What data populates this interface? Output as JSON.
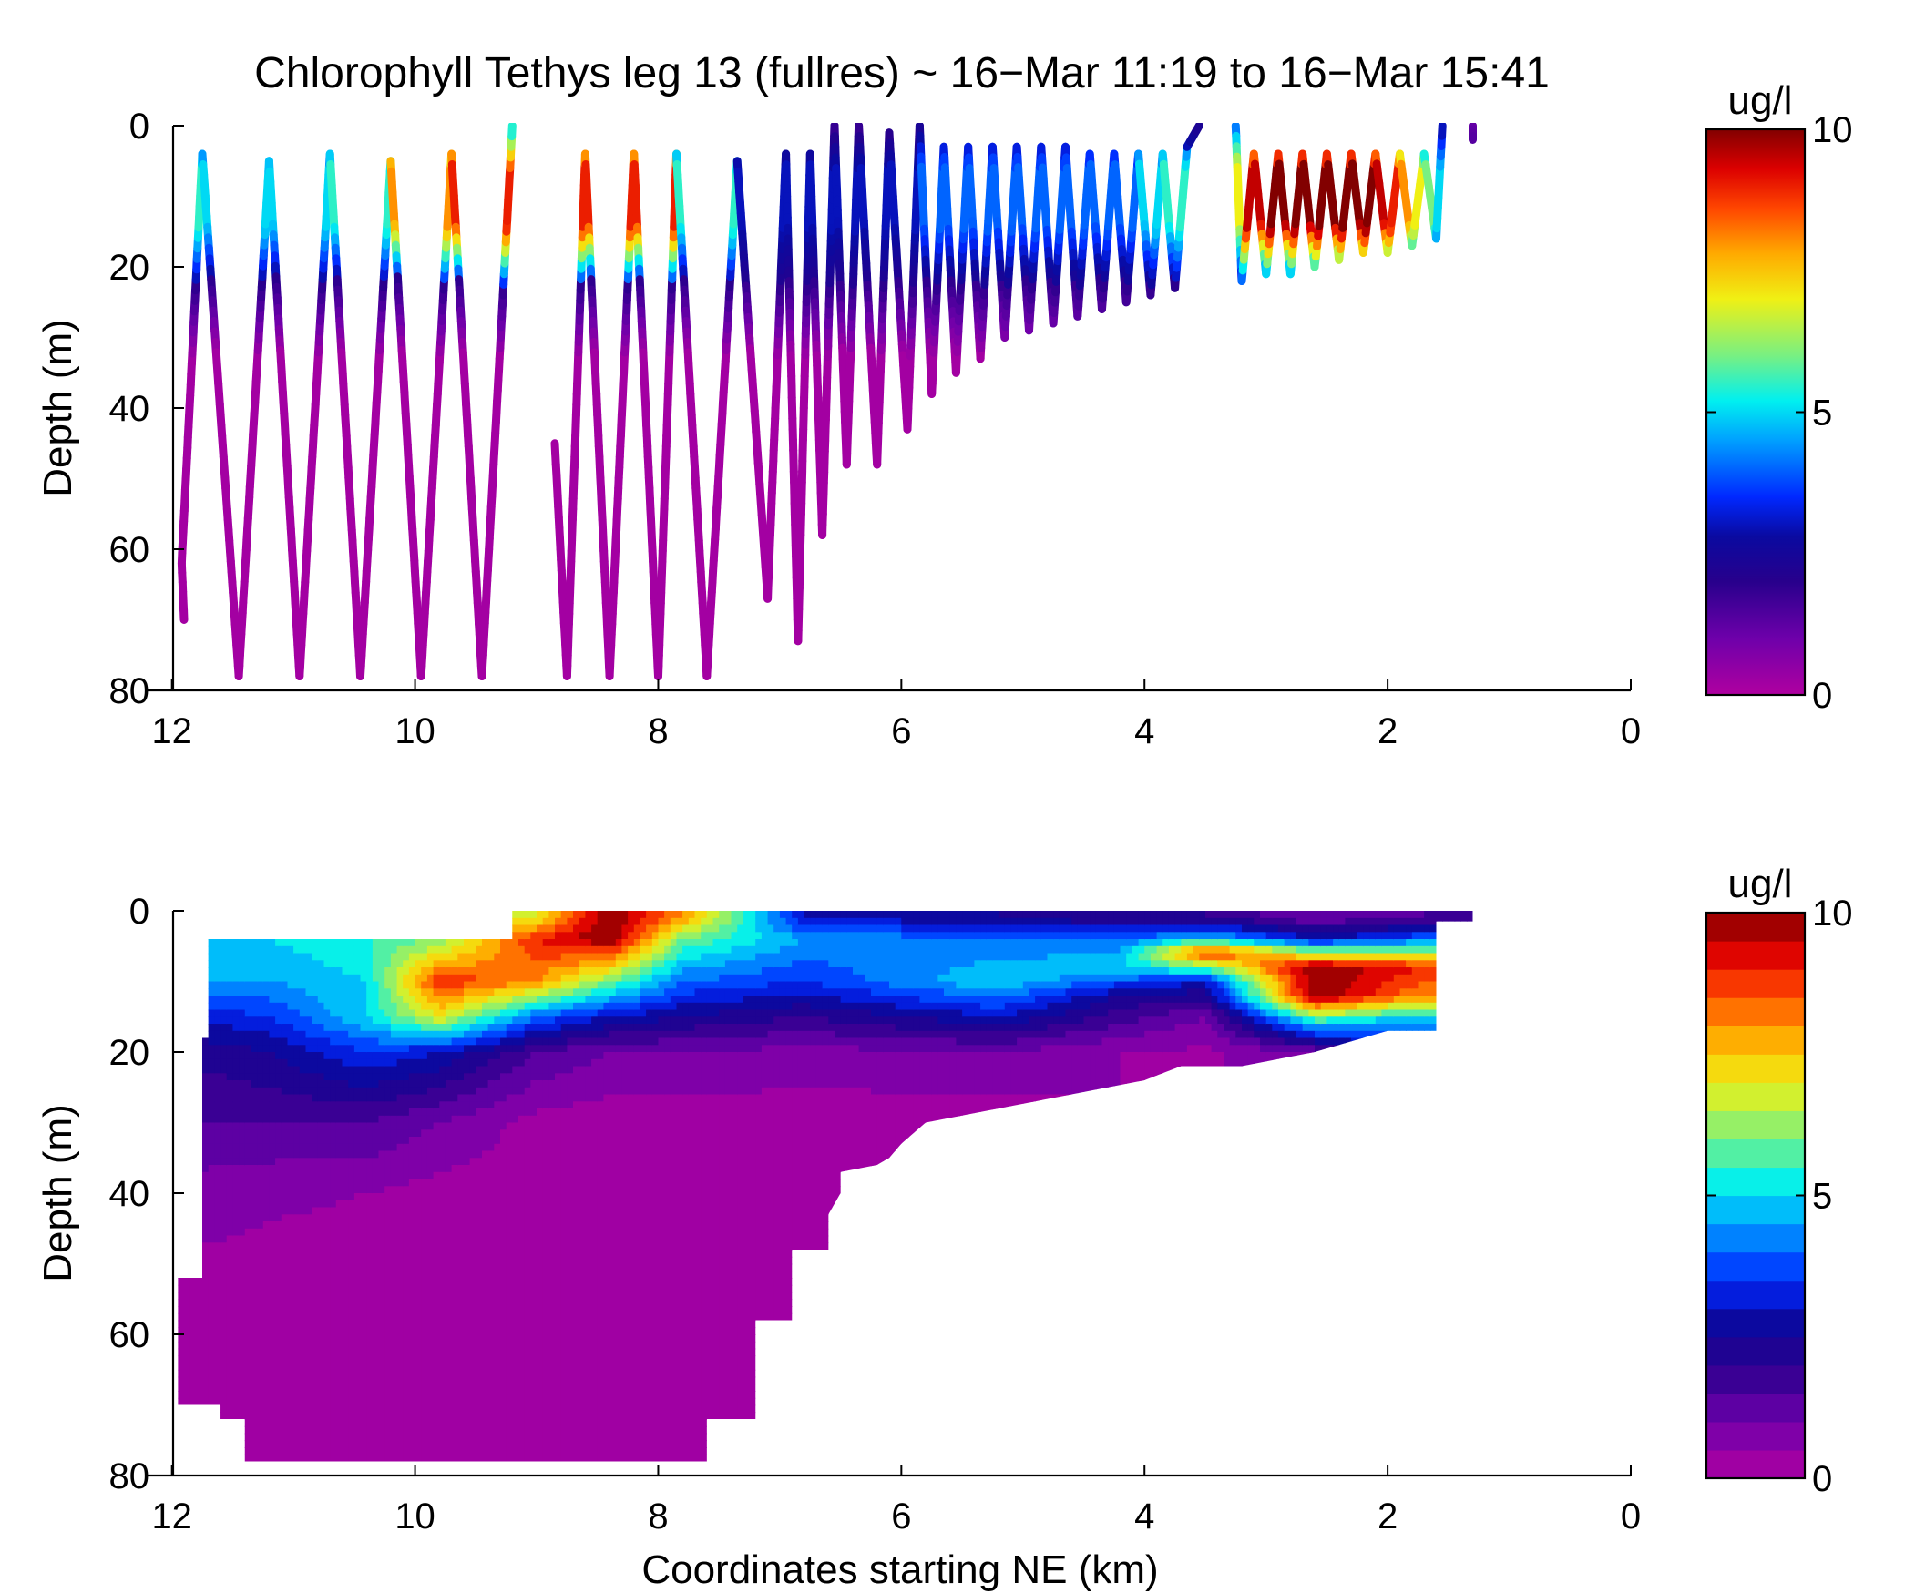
{
  "title": "Chlorophyll Tethys leg 13 (fullres) ~ 16−Mar 11:19 to 16−Mar 15:41",
  "chart_data": [
    {
      "type": "scatter",
      "panel": "top",
      "xlabel": "",
      "ylabel": "Depth (m)",
      "xlim": [
        12.2,
        0
      ],
      "ylim": [
        0,
        80
      ],
      "y_reversed": true,
      "xticks": [
        "12",
        "10",
        "8",
        "6",
        "4",
        "2",
        "0"
      ],
      "yticks": [
        "0",
        "20",
        "40",
        "60",
        "80"
      ],
      "colorbar": {
        "label": "ug/l",
        "range": [
          0,
          10
        ],
        "ticks": [
          "0",
          "5",
          "10"
        ],
        "colormap": "jet-like (magenta→blue→cyan→yellow→red→dark red)",
        "continuous": true
      },
      "series": [
        {
          "path_km_depth": [
            [
              11.9,
              70
            ],
            [
              11.92,
              62
            ],
            [
              11.75,
              4
            ],
            [
              11.45,
              78
            ],
            [
              11.2,
              5
            ],
            [
              10.95,
              78
            ],
            [
              10.7,
              4
            ],
            [
              10.45,
              78
            ],
            [
              10.2,
              5
            ],
            [
              9.95,
              78
            ],
            [
              9.7,
              4
            ],
            [
              9.45,
              78
            ],
            [
              9.2,
              0
            ]
          ],
          "upper_chl": [
            2,
            5.5,
            2,
            5,
            2,
            5,
            2,
            5.5,
            2,
            8,
            2,
            9,
            6
          ],
          "description": "sampling track segment 1"
        },
        {
          "path_km_depth": [
            [
              8.85,
              45
            ],
            [
              8.75,
              78
            ],
            [
              8.6,
              4
            ],
            [
              8.4,
              78
            ],
            [
              8.2,
              4
            ],
            [
              8.0,
              78
            ],
            [
              7.85,
              4
            ],
            [
              7.6,
              78
            ],
            [
              7.35,
              5
            ],
            [
              7.1,
              67
            ],
            [
              6.95,
              4
            ],
            [
              6.85,
              73
            ],
            [
              6.75,
              4
            ],
            [
              6.65,
              58
            ],
            [
              6.55,
              0
            ],
            [
              6.45,
              48
            ],
            [
              6.35,
              0
            ],
            [
              6.2,
              48
            ],
            [
              6.1,
              1
            ],
            [
              5.95,
              43
            ],
            [
              5.85,
              0
            ],
            [
              5.75,
              38
            ],
            [
              5.65,
              3
            ],
            [
              5.55,
              35
            ],
            [
              5.45,
              3
            ],
            [
              5.35,
              33
            ],
            [
              5.25,
              3
            ],
            [
              5.15,
              30
            ],
            [
              5.05,
              3
            ],
            [
              4.95,
              29
            ],
            [
              4.85,
              3
            ],
            [
              4.75,
              28
            ],
            [
              4.65,
              3
            ],
            [
              4.55,
              27
            ],
            [
              4.45,
              4
            ],
            [
              4.35,
              26
            ],
            [
              4.25,
              4
            ],
            [
              4.15,
              25
            ],
            [
              4.05,
              4
            ],
            [
              3.95,
              24
            ],
            [
              3.85,
              4
            ],
            [
              3.75,
              23
            ],
            [
              3.65,
              3
            ],
            [
              3.55,
              0
            ]
          ],
          "upper_chl": [
            2,
            9,
            2,
            9,
            2,
            9,
            2,
            5.5,
            2,
            3,
            2,
            3,
            2,
            3,
            2,
            3,
            2,
            3,
            2,
            3,
            2,
            4,
            2,
            4,
            2,
            4,
            2,
            4,
            2,
            4,
            2,
            4,
            2,
            4,
            2,
            4,
            2,
            4,
            2,
            5,
            2,
            5.5,
            2,
            4
          ],
          "description": "sampling track segment 2"
        },
        {
          "path_km_depth": [
            [
              3.25,
              0
            ],
            [
              3.2,
              22
            ],
            [
              3.1,
              4
            ],
            [
              3.0,
              21
            ],
            [
              2.9,
              4
            ],
            [
              2.8,
              21
            ],
            [
              2.7,
              4
            ],
            [
              2.6,
              20
            ],
            [
              2.5,
              4
            ],
            [
              2.4,
              19
            ],
            [
              2.3,
              4
            ],
            [
              2.2,
              18
            ],
            [
              2.1,
              4
            ],
            [
              2.0,
              18
            ],
            [
              1.9,
              4
            ],
            [
              1.8,
              17
            ],
            [
              1.7,
              4
            ],
            [
              1.6,
              16
            ],
            [
              1.55,
              0
            ]
          ],
          "upper_chl": [
            3,
            7,
            9.5,
            9.5,
            10,
            10,
            10,
            10,
            10,
            10,
            10,
            10,
            9.5,
            9,
            8,
            7,
            6,
            5,
            3
          ],
          "description": "sampling track segment 3"
        },
        {
          "path_km_depth": [
            [
              1.3,
              0
            ],
            [
              1.3,
              2
            ]
          ],
          "upper_chl": [
            2,
            2
          ],
          "description": "sampling track segment 4"
        }
      ]
    },
    {
      "type": "heatmap",
      "subtype": "filled contour",
      "panel": "bottom",
      "xlabel": "Coordinates starting NE (km)",
      "ylabel": "Depth (m)",
      "xlim": [
        12.2,
        0
      ],
      "ylim": [
        0,
        80
      ],
      "y_reversed": true,
      "xticks": [
        "12",
        "10",
        "8",
        "6",
        "4",
        "2",
        "0"
      ],
      "yticks": [
        "0",
        "20",
        "40",
        "60",
        "80"
      ],
      "colorbar": {
        "label": "ug/l",
        "range": [
          0,
          10
        ],
        "ticks": [
          "0",
          "5",
          "10"
        ],
        "levels": 20
      },
      "data_mask_outline_km_depth": [
        [
          9.2,
          0
        ],
        [
          1.3,
          0
        ],
        [
          1.3,
          1.5
        ],
        [
          1.6,
          1.5
        ],
        [
          1.6,
          17
        ],
        [
          2.0,
          17
        ],
        [
          2.2,
          18
        ],
        [
          2.6,
          20
        ],
        [
          3.2,
          22
        ],
        [
          3.7,
          22
        ],
        [
          4.0,
          24
        ],
        [
          4.6,
          26
        ],
        [
          5.2,
          28
        ],
        [
          5.8,
          30
        ],
        [
          6.0,
          33
        ],
        [
          6.1,
          35
        ],
        [
          6.2,
          36
        ],
        [
          6.5,
          37
        ],
        [
          6.5,
          40
        ],
        [
          6.6,
          43
        ],
        [
          6.6,
          48
        ],
        [
          6.9,
          48
        ],
        [
          6.9,
          58
        ],
        [
          7.2,
          58
        ],
        [
          7.2,
          72
        ],
        [
          7.6,
          72
        ],
        [
          7.6,
          78
        ],
        [
          11.4,
          78
        ],
        [
          11.4,
          72
        ],
        [
          11.6,
          72
        ],
        [
          11.6,
          70
        ],
        [
          11.95,
          70
        ],
        [
          11.95,
          52
        ],
        [
          11.75,
          52
        ],
        [
          11.75,
          18
        ],
        [
          11.7,
          18
        ],
        [
          11.7,
          4
        ],
        [
          9.2,
          4
        ]
      ],
      "profiles_top_to_bottom": [
        {
          "x": 12.0,
          "depths": [
            4,
            10,
            15,
            20,
            30,
            40,
            60
          ],
          "chl": [
            5,
            4.5,
            3,
            2,
            1.5,
            0.8,
            0.1
          ]
        },
        {
          "x": 11.2,
          "depths": [
            4,
            10,
            15,
            20,
            30,
            40,
            60
          ],
          "chl": [
            5,
            4.5,
            3.5,
            2.5,
            1.5,
            0.6,
            0.1
          ]
        },
        {
          "x": 10.4,
          "depths": [
            4,
            10,
            15,
            20,
            30,
            40,
            60
          ],
          "chl": [
            5.5,
            5,
            5,
            3.5,
            1.5,
            0.5,
            0.1
          ]
        },
        {
          "x": 9.8,
          "depths": [
            4,
            10,
            15,
            20,
            30,
            40,
            60
          ],
          "chl": [
            6,
            9,
            7,
            3,
            1,
            0.3,
            0.1
          ]
        },
        {
          "x": 9.0,
          "depths": [
            1,
            4,
            10,
            15,
            20,
            30,
            60
          ],
          "chl": [
            7,
            9,
            8,
            4,
            1.5,
            0.3,
            0.1
          ]
        },
        {
          "x": 8.4,
          "depths": [
            1,
            4,
            10,
            15,
            20,
            30,
            60
          ],
          "chl": [
            10,
            10,
            6,
            3,
            1,
            0.2,
            0.1
          ]
        },
        {
          "x": 7.8,
          "depths": [
            1,
            4,
            10,
            15,
            20,
            30,
            60
          ],
          "chl": [
            8,
            6,
            4,
            2.5,
            1,
            0.2,
            0.1
          ]
        },
        {
          "x": 6.8,
          "depths": [
            1,
            4,
            10,
            15,
            20,
            30,
            60
          ],
          "chl": [
            3,
            4.5,
            3.5,
            2,
            0.8,
            0.2,
            0.1
          ]
        },
        {
          "x": 5.2,
          "depths": [
            1,
            4,
            10,
            15,
            20,
            30
          ],
          "chl": [
            2.5,
            4,
            5,
            3,
            1,
            0.2
          ]
        },
        {
          "x": 4.2,
          "depths": [
            1,
            4,
            8,
            12,
            20
          ],
          "chl": [
            2,
            4,
            5,
            2.5,
            0.5
          ]
        },
        {
          "x": 3.5,
          "depths": [
            1,
            4,
            6,
            10,
            15,
            20
          ],
          "chl": [
            2,
            5,
            9,
            3,
            1,
            0.4
          ]
        },
        {
          "x": 2.6,
          "depths": [
            1,
            4,
            8,
            12,
            16,
            20
          ],
          "chl": [
            1,
            3,
            10,
            10,
            5,
            1
          ]
        },
        {
          "x": 1.7,
          "depths": [
            1,
            4,
            8,
            12,
            16
          ],
          "chl": [
            1.5,
            4,
            9,
            8,
            4
          ]
        }
      ]
    }
  ]
}
